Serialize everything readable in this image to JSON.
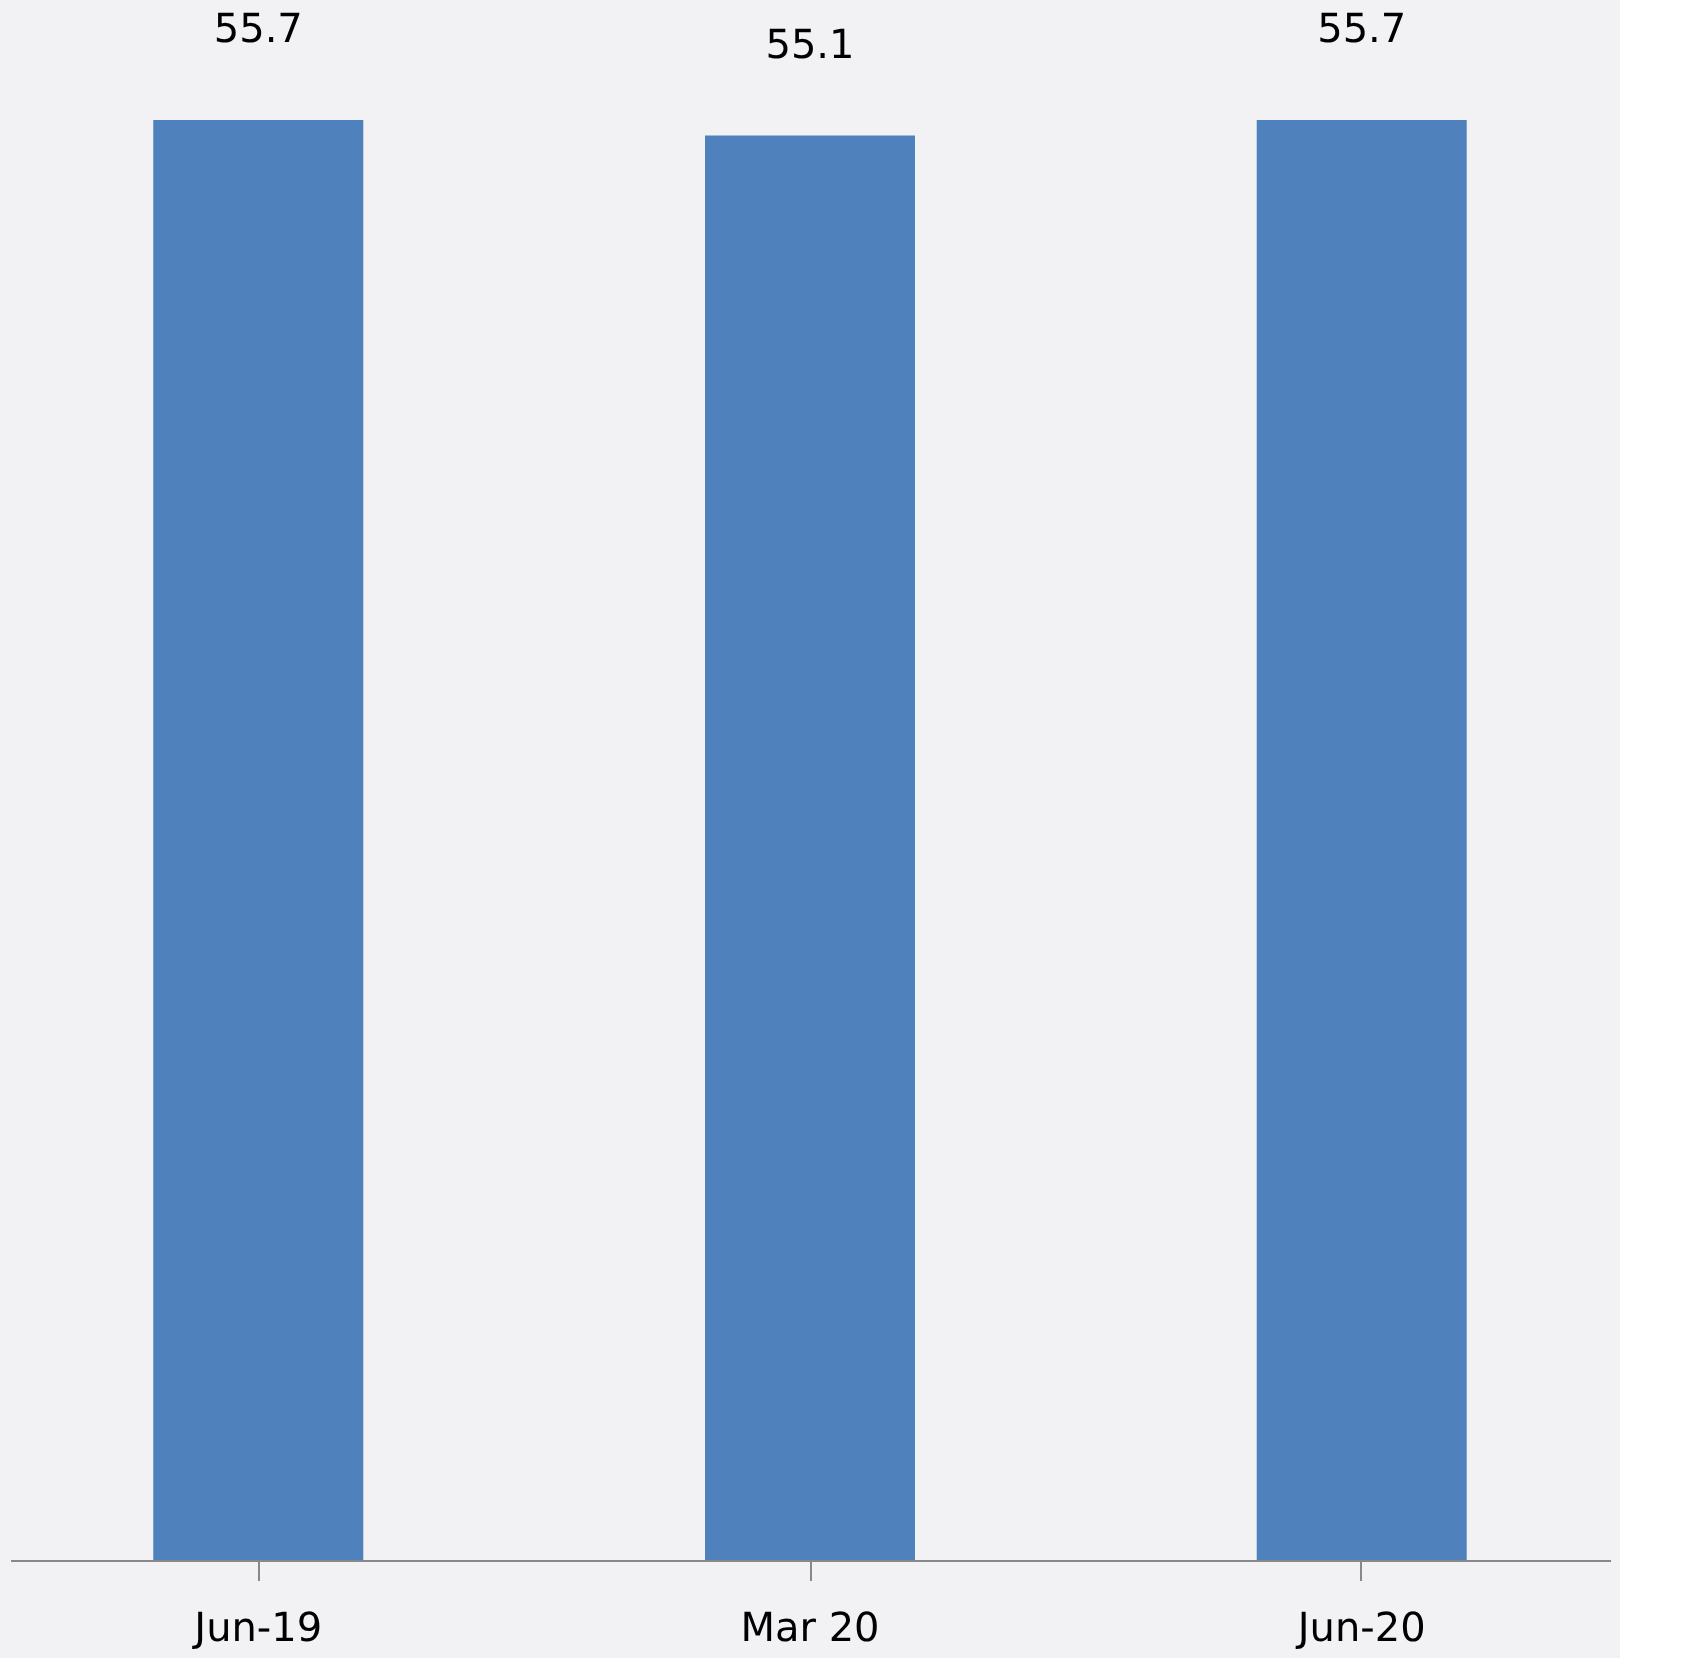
{
  "chart_data": {
    "type": "bar",
    "categories": [
      "Jun-19",
      "Mar 20",
      "Jun-20"
    ],
    "values": [
      55.7,
      55.1,
      55.7
    ],
    "color": "#4f81bd",
    "data_labels": true,
    "grid": false
  }
}
